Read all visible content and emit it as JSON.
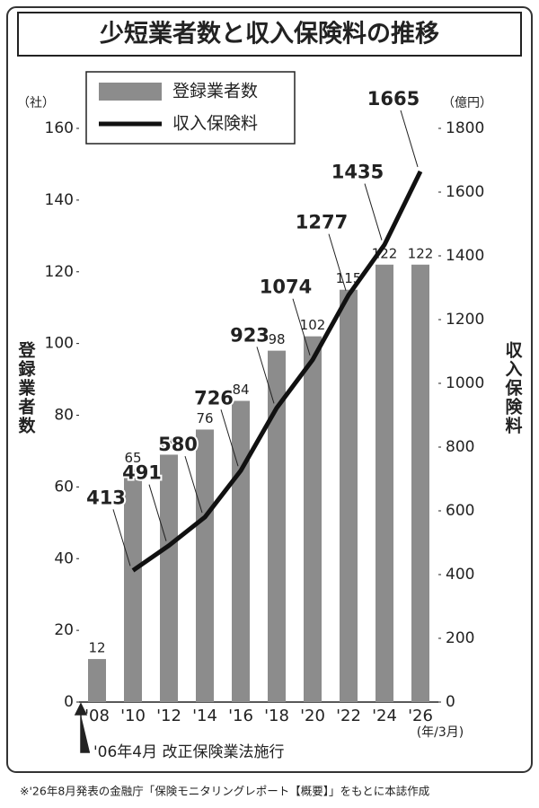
{
  "chart_data": {
    "type": "bar",
    "title": "少短業者数と収入保険料の推移",
    "ylabel": "登録業者数",
    "y2label": "収入保険料",
    "yunit": "（社）",
    "y2unit": "（億円）",
    "xunit": "(年/3月)",
    "annotation": "'06年4月 改正保険業法施行",
    "footnote": "※'26年8月発表の金融庁「保険モニタリングレポート【概要】」をもとに本誌作成",
    "categories": [
      "'08",
      "'10",
      "'12",
      "'14",
      "'16",
      "'18",
      "'20",
      "'22",
      "'24",
      "'26"
    ],
    "series": [
      {
        "name": "登録業者数",
        "type": "bar",
        "color": "#8c8c8c",
        "values": [
          12,
          65,
          69,
          76,
          84,
          98,
          102,
          115,
          122,
          122
        ]
      },
      {
        "name": "収入保険料",
        "type": "line",
        "axis": "y2",
        "color": "#111111",
        "values": [
          null,
          413,
          491,
          580,
          726,
          923,
          1074,
          1277,
          1435,
          1665
        ]
      }
    ],
    "ylim": [
      0,
      160
    ],
    "yticks": [
      0,
      20,
      40,
      60,
      80,
      100,
      120,
      140,
      160
    ],
    "y2lim": [
      0,
      1800
    ],
    "y2ticks": [
      0,
      200,
      400,
      600,
      800,
      1000,
      1200,
      1400,
      1600,
      1800
    ],
    "legend": "upper left"
  }
}
